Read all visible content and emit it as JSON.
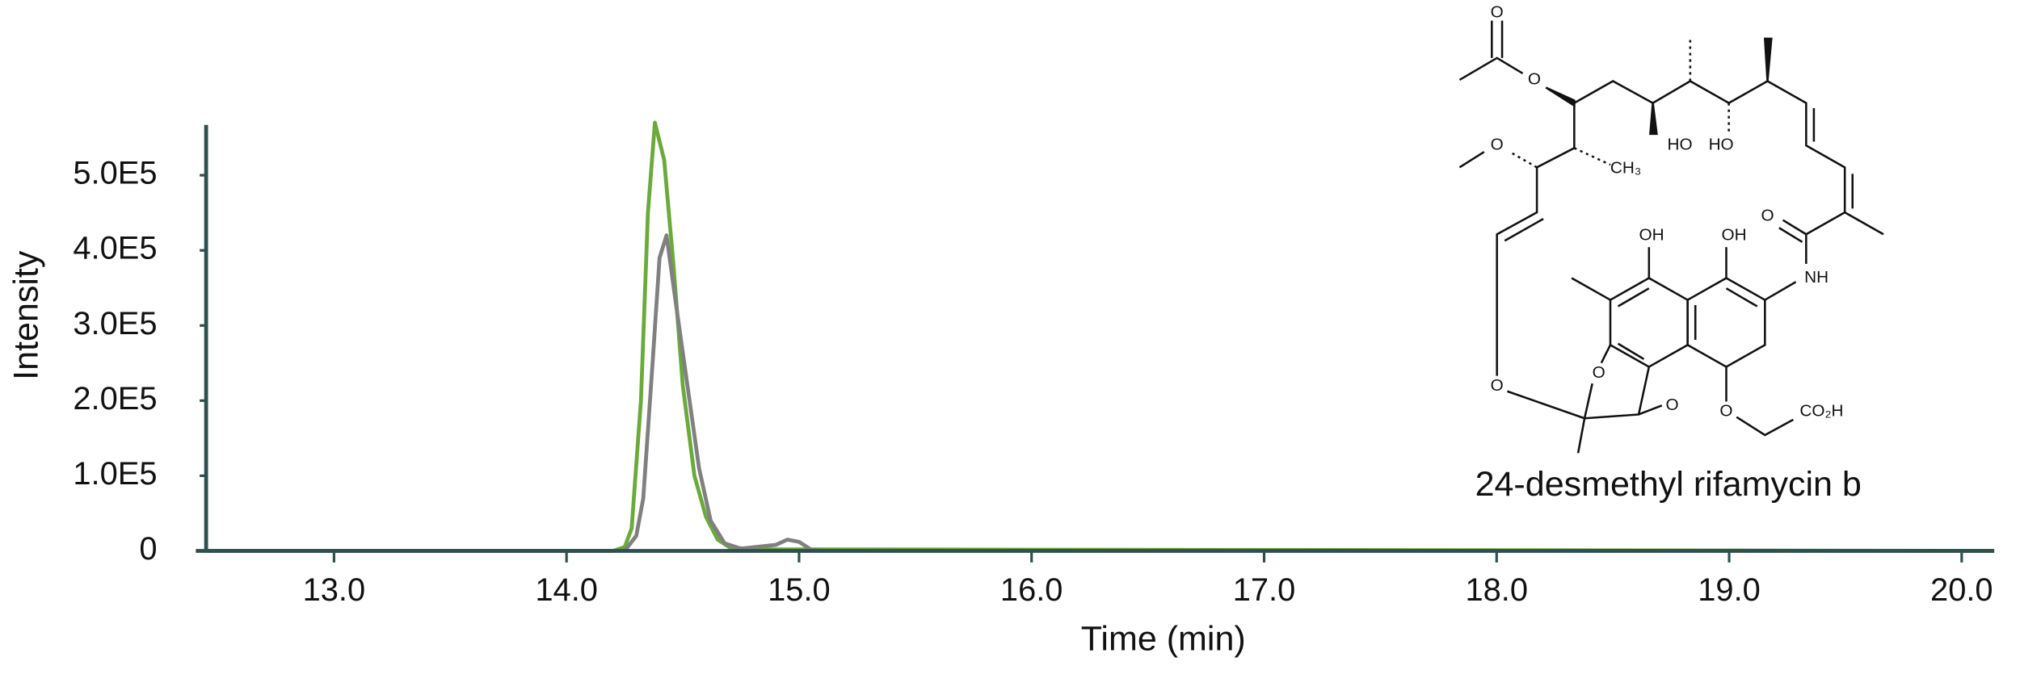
{
  "chart_data": {
    "type": "line",
    "x_label": "Time (min)",
    "y_label": "Intensity",
    "xlim": [
      12.45,
      20.14
    ],
    "ylim": [
      0,
      567000
    ],
    "xticks": [
      {
        "value": 13,
        "label": "13.0"
      },
      {
        "value": 14,
        "label": "14.0"
      },
      {
        "value": 15,
        "label": "15.0"
      },
      {
        "value": 16,
        "label": "16.0"
      },
      {
        "value": 17,
        "label": "17.0"
      },
      {
        "value": 18,
        "label": "18.0"
      },
      {
        "value": 19,
        "label": "19.0"
      },
      {
        "value": 20,
        "label": "20.0"
      }
    ],
    "yticks": [
      0,
      {
        "value": 100000,
        "label": "1.0E5"
      },
      {
        "value": 200000,
        "label": "2.0E5"
      },
      {
        "value": 300000,
        "label": "3.0E5"
      },
      {
        "value": 400000,
        "label": "4.0E5"
      },
      {
        "value": 500000,
        "label": "5.0E5"
      }
    ],
    "series": [
      {
        "color": "#6aaa3a",
        "x": [
          12.45,
          14.2,
          14.25,
          14.28,
          14.32,
          14.35,
          14.38,
          14.42,
          14.46,
          14.5,
          14.55,
          14.6,
          14.65,
          14.7,
          14.8,
          15.0,
          20.14
        ],
        "values": [
          0,
          0,
          5000,
          30000,
          200000,
          450000,
          570000,
          520000,
          380000,
          220000,
          100000,
          45000,
          15000,
          5000,
          2000,
          2000,
          0
        ]
      },
      {
        "color": "#808080",
        "x": [
          14.25,
          14.3,
          14.33,
          14.37,
          14.4,
          14.43,
          14.47,
          14.52,
          14.57,
          14.62,
          14.68,
          14.75,
          14.9,
          14.95,
          15.0,
          15.05,
          15.1
        ],
        "values": [
          0,
          20000,
          70000,
          250000,
          390000,
          420000,
          330000,
          220000,
          110000,
          40000,
          10000,
          3000,
          8000,
          15000,
          12000,
          2000,
          0
        ]
      }
    ],
    "structure": {
      "caption": "24-desmethyl rifamycin b",
      "labels": [
        "O",
        "O",
        "HO",
        "HO",
        "CH₃",
        "O",
        "O",
        "OH",
        "OH",
        "NH",
        "O",
        "O",
        "O",
        "O",
        "CO₂H"
      ]
    }
  }
}
